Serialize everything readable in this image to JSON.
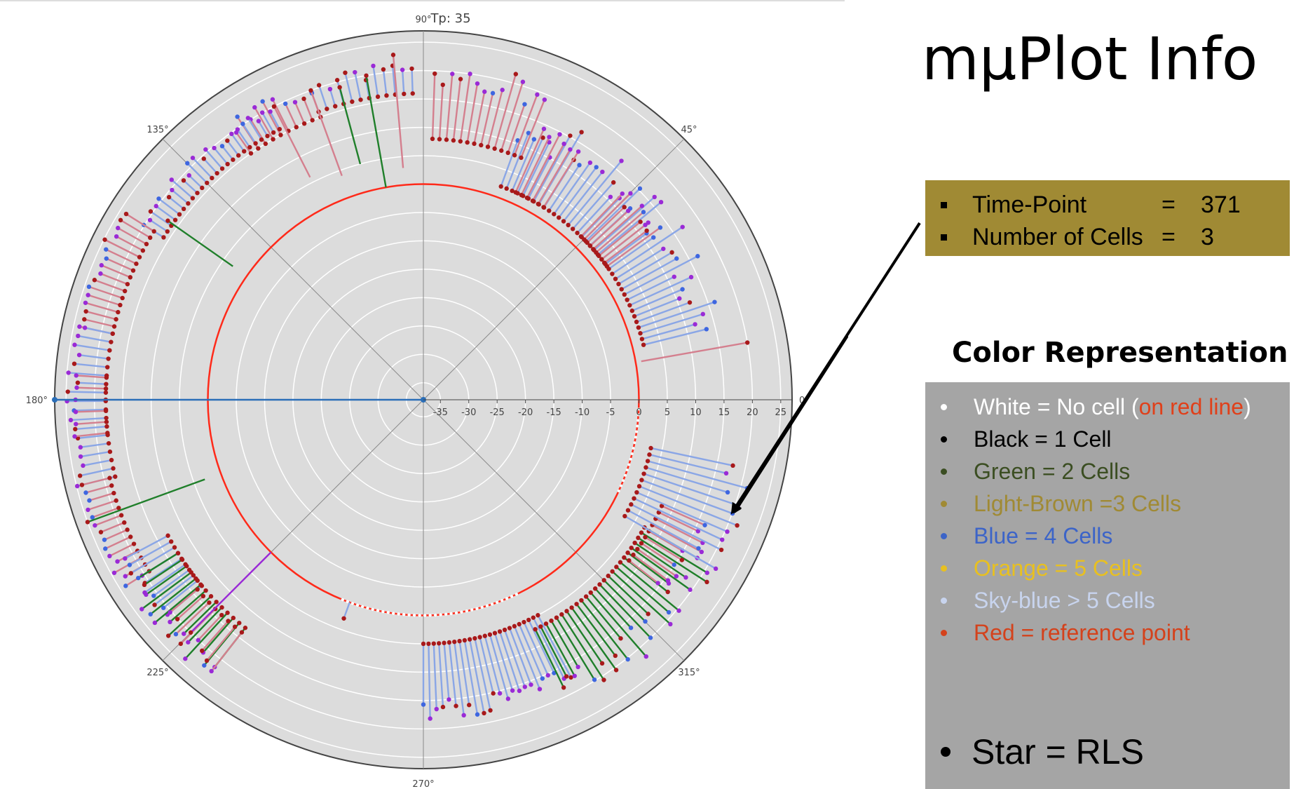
{
  "chart_data": {
    "type": "polar",
    "title": "Tp: 35",
    "angle_tick_labels": [
      "0°",
      "45°",
      "90°",
      "135°",
      "180°",
      "225°",
      "270°",
      "315°"
    ],
    "radial_tick_labels": [
      "-35",
      "-30",
      "-25",
      "-20",
      "-15",
      "-10",
      "-5",
      "0",
      "5",
      "10",
      "15",
      "20",
      "25"
    ],
    "radial_range": [
      -38,
      27
    ],
    "reference_circle_radius": 0,
    "grid": true,
    "spokes": [
      {
        "angle": 95,
        "inner": 3,
        "outer": 23,
        "color": "pink"
      },
      {
        "angle": 100,
        "inner": 0,
        "outer": 20,
        "color": "green"
      },
      {
        "angle": 105,
        "inner": 5,
        "outer": 19,
        "color": "green"
      },
      {
        "angle": 110,
        "inner": 4,
        "outer": 20,
        "color": "pink"
      },
      {
        "angle": 117,
        "inner": 6,
        "outer": 20,
        "color": "pink"
      },
      {
        "angle": 145,
        "inner": 3,
        "outer": 17,
        "color": "green"
      },
      {
        "angle": 180,
        "inner": -38,
        "outer": 27,
        "color": "steelblue"
      },
      {
        "angle": 200,
        "inner": 3,
        "outer": 25,
        "color": "green"
      },
      {
        "angle": 225,
        "inner": 0,
        "outer": 20,
        "color": "purple"
      },
      {
        "angle": 250,
        "inner": 0,
        "outer": 3,
        "color": "blue"
      },
      {
        "angle": 10,
        "inner": 1,
        "outer": 20,
        "color": "pink"
      }
    ],
    "spoke_groups": [
      {
        "start": 14,
        "end": 70,
        "count": 38,
        "inner": 2,
        "outer_min": 10,
        "outer_max": 17,
        "color": "blue"
      },
      {
        "start": 36,
        "end": 46,
        "count": 10,
        "inner": 2,
        "outer_min": 11,
        "outer_max": 14,
        "color": "pink"
      },
      {
        "start": 58,
        "end": 66,
        "count": 6,
        "inner": 2,
        "outer_min": 13,
        "outer_max": 15,
        "color": "pink"
      },
      {
        "start": 68,
        "end": 88,
        "count": 14,
        "inner": 8,
        "outer_min": 17,
        "outer_max": 22,
        "color": "pink"
      },
      {
        "start": 92,
        "end": 110,
        "count": 12,
        "inner": 16,
        "outer_min": 19,
        "outer_max": 22,
        "color": "blue"
      },
      {
        "start": 110,
        "end": 125,
        "count": 10,
        "inner": 15,
        "outer_min": 19,
        "outer_max": 22,
        "color": "pink"
      },
      {
        "start": 118,
        "end": 148,
        "count": 24,
        "inner": 16,
        "outer_min": 19,
        "outer_max": 21,
        "color": "blue"
      },
      {
        "start": 148,
        "end": 168,
        "count": 16,
        "inner": 18,
        "outer_min": 23,
        "outer_max": 25,
        "color": "pink"
      },
      {
        "start": 168,
        "end": 194,
        "count": 18,
        "inner": 18,
        "outer_min": 23,
        "outer_max": 25,
        "color": "blue"
      },
      {
        "start": 176,
        "end": 186,
        "count": 6,
        "inner": 18,
        "outer_min": 23,
        "outer_max": 24,
        "color": "pink"
      },
      {
        "start": 194,
        "end": 212,
        "count": 14,
        "inner": 19,
        "outer_min": 23,
        "outer_max": 25,
        "color": "pink"
      },
      {
        "start": 208,
        "end": 220,
        "count": 10,
        "inner": 13,
        "outer_min": 20,
        "outer_max": 22,
        "color": "blue"
      },
      {
        "start": 212,
        "end": 232,
        "count": 14,
        "inner": 13,
        "outer_min": 21,
        "outer_max": 24,
        "color": "green"
      },
      {
        "start": 220,
        "end": 232,
        "count": 8,
        "inner": 14,
        "outer_min": 20,
        "outer_max": 23,
        "color": "pink"
      },
      {
        "start": 270,
        "end": 298,
        "count": 24,
        "inner": 5,
        "outer_min": 15,
        "outer_max": 19,
        "color": "blue"
      },
      {
        "start": 296,
        "end": 330,
        "count": 26,
        "inner": 7,
        "outer_min": 16,
        "outer_max": 22,
        "color": "green"
      },
      {
        "start": 322,
        "end": 336,
        "count": 10,
        "inner": 8,
        "outer_min": 14,
        "outer_max": 18,
        "color": "pink"
      },
      {
        "start": 330,
        "end": 348,
        "count": 12,
        "inner": 3,
        "outer_min": 16,
        "outer_max": 22,
        "color": "blue"
      }
    ]
  },
  "header": {
    "title": "mμPlot   Info"
  },
  "info": {
    "rows": [
      {
        "label": "Time-Point",
        "eq": "=",
        "value": "371"
      },
      {
        "label": "Number of Cells",
        "eq": "=",
        "value": "3"
      }
    ]
  },
  "legend": {
    "title": "Color Representation",
    "items": [
      {
        "text": "White = No cell (",
        "extra": "on red line",
        "extra_color": "#e0401a",
        "suffix": ")",
        "color": "#ffffff"
      },
      {
        "text": "Black =  1 Cell",
        "extra": "",
        "suffix": "",
        "color": "#000000"
      },
      {
        "text": "Green = 2 Cells",
        "extra": "",
        "suffix": "",
        "color": "#3b4e22"
      },
      {
        "text": "Light-Brown =3 Cells",
        "extra": "",
        "suffix": "",
        "color": "#a08a34"
      },
      {
        "text": "Blue = 4 Cells",
        "extra": "",
        "suffix": "",
        "color": "#3c64c8"
      },
      {
        "text": "Orange  = 5 Cells",
        "extra": "",
        "suffix": "",
        "color": "#e8c020"
      },
      {
        "text": " Sky-blue   > 5 Cells",
        "extra": "",
        "suffix": "",
        "color": "#c8d4ee"
      },
      {
        "text": "Red = reference point",
        "extra": "",
        "suffix": "",
        "color": "#d4421c"
      }
    ],
    "star_text": "Star = RLS"
  },
  "colors": {
    "plot_bg": "#dcdcdc",
    "ref_line": "#ff2a1a",
    "pink": "#d47f8e",
    "blue": "#8aa6e6",
    "green": "#1f7f2a",
    "purple": "#9a2ad6",
    "steelblue": "#2a6eb8",
    "marker_red": "#a8191a",
    "marker_violet": "#9a2ad6",
    "marker_blue": "#3e66e0",
    "info_bg": "#a08a34",
    "legend_bg": "#a5a5a5"
  }
}
